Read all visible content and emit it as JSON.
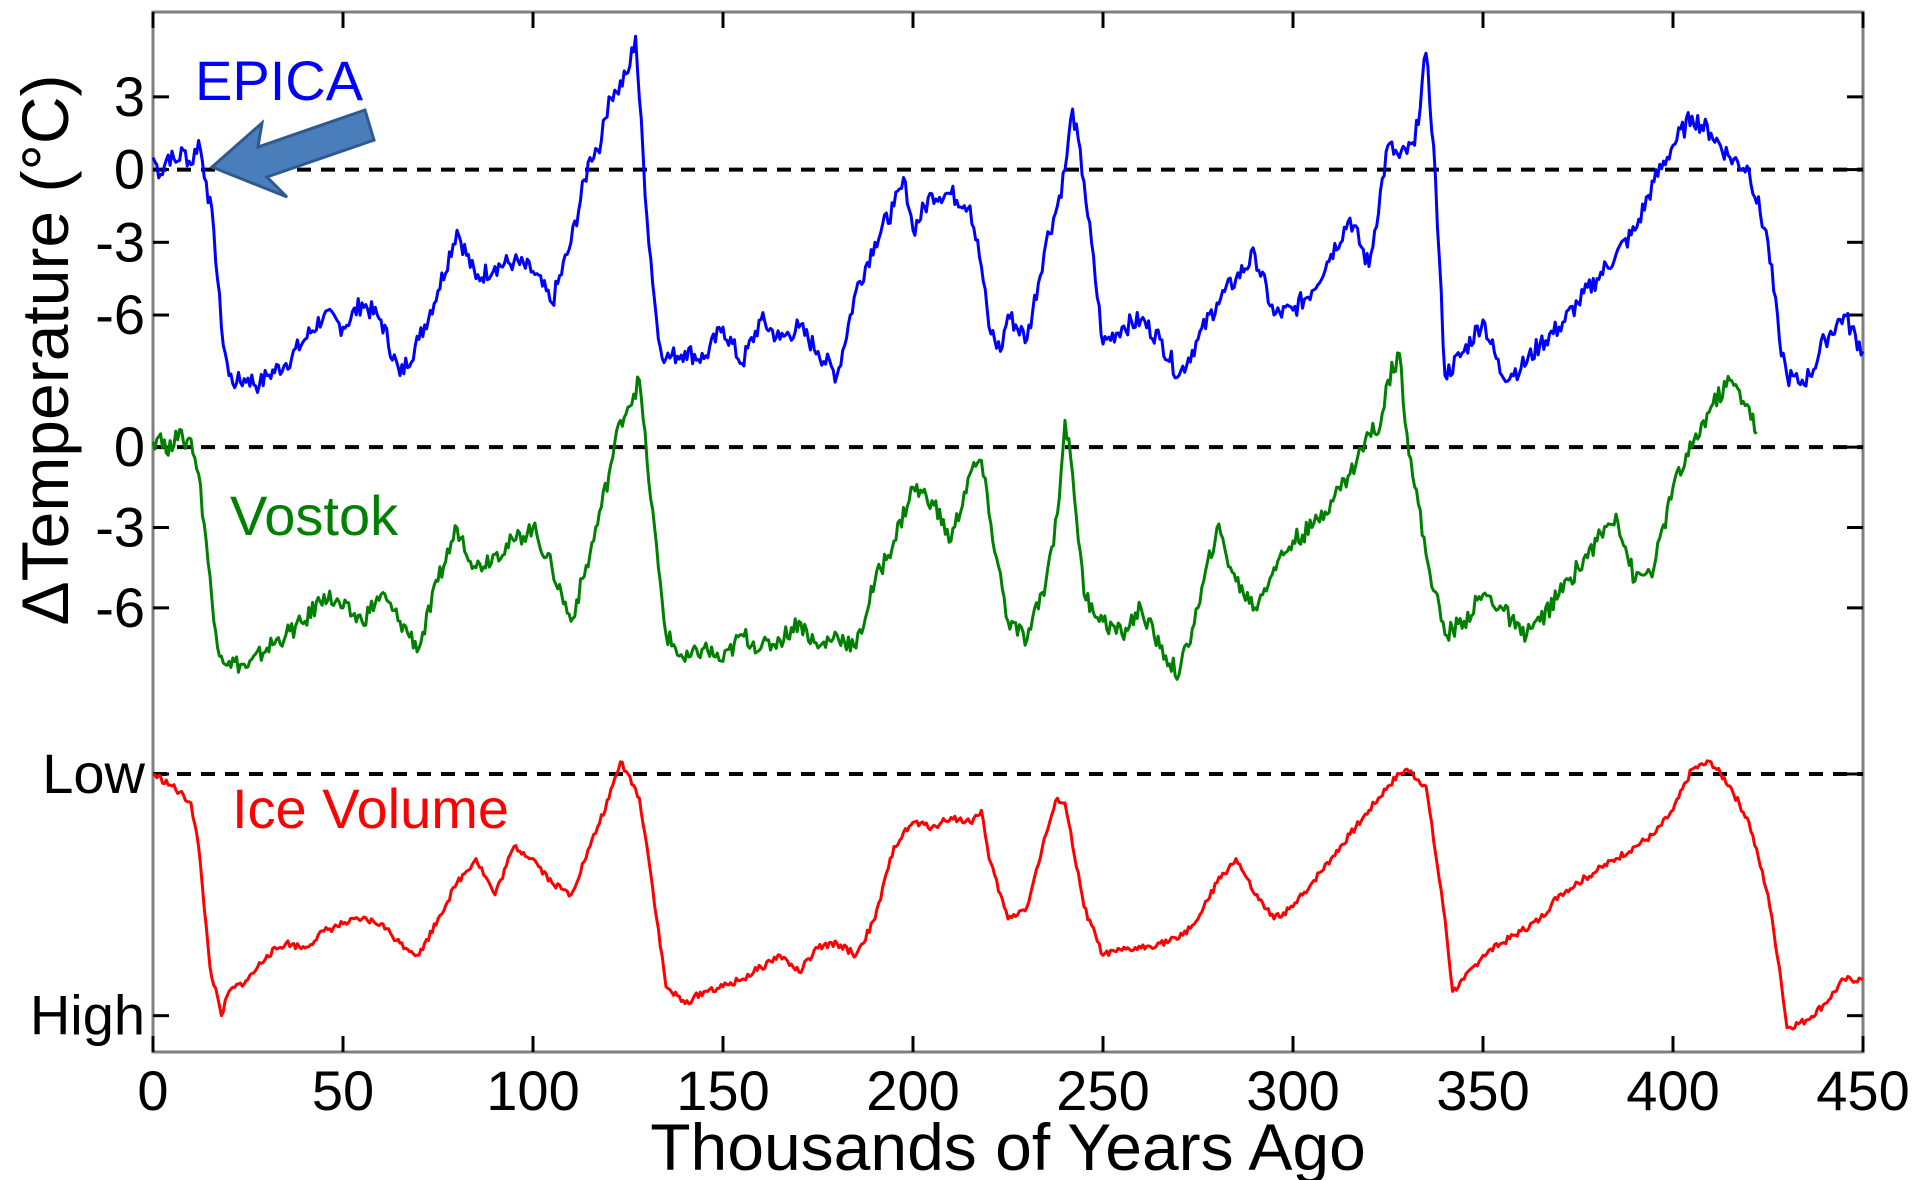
{
  "chart_data": {
    "type": "line",
    "xlabel": "Thousands of Years Ago",
    "ylabel": "ΔTemperature (°C)",
    "xlim": [
      0,
      450
    ],
    "x_ticks": [
      "0",
      "50",
      "100",
      "150",
      "200",
      "250",
      "300",
      "350",
      "400",
      "450"
    ],
    "grid": false,
    "panels": [
      {
        "name": "EPICA",
        "unit": "°C",
        "ylim": [
          -10,
          6.5
        ],
        "y_ticks": [
          3,
          0,
          -3,
          -6
        ],
        "y_tick_labels": [
          "3",
          "0",
          "-3",
          "-6"
        ],
        "color": "#0000ff",
        "baseline": 0,
        "x": [
          0,
          2,
          4,
          6,
          8,
          10,
          12,
          14,
          16,
          18,
          20,
          22,
          25,
          28,
          30,
          35,
          40,
          45,
          50,
          55,
          60,
          65,
          70,
          75,
          80,
          85,
          90,
          95,
          100,
          105,
          110,
          115,
          118,
          120,
          122,
          125,
          127,
          130,
          133,
          135,
          140,
          145,
          150,
          155,
          160,
          165,
          170,
          175,
          180,
          185,
          190,
          195,
          198,
          200,
          205,
          210,
          215,
          218,
          220,
          223,
          225,
          230,
          235,
          238,
          240,
          242,
          245,
          250,
          255,
          260,
          265,
          270,
          275,
          280,
          285,
          290,
          295,
          300,
          305,
          310,
          315,
          320,
          325,
          328,
          332,
          335,
          337,
          340,
          345,
          350,
          355,
          360,
          365,
          370,
          375,
          380,
          385,
          390,
          395,
          400,
          405,
          410,
          415,
          420,
          425,
          428,
          430,
          433,
          436,
          440,
          445,
          450
        ],
        "y": [
          0.5,
          -0.2,
          0.6,
          0.3,
          0.8,
          0.2,
          1.2,
          -0.5,
          -2.5,
          -6.5,
          -8.5,
          -8.8,
          -8.6,
          -8.9,
          -8.5,
          -8.0,
          -7.0,
          -6.0,
          -6.5,
          -5.5,
          -6.2,
          -8.5,
          -7.0,
          -5.0,
          -2.5,
          -4.5,
          -4.0,
          -3.8,
          -4.2,
          -5.5,
          -3.0,
          0.5,
          1.2,
          3.0,
          3.2,
          4.0,
          5.5,
          -2.0,
          -7.0,
          -7.8,
          -7.5,
          -7.8,
          -6.5,
          -8.0,
          -6.2,
          -7.0,
          -6.5,
          -7.5,
          -8.5,
          -5.0,
          -3.0,
          -1.5,
          -0.5,
          -2.5,
          -1.0,
          -1.0,
          -1.5,
          -4.0,
          -6.5,
          -7.5,
          -6.0,
          -7.0,
          -3.0,
          -1.5,
          0.0,
          2.5,
          -0.5,
          -7.2,
          -6.5,
          -6.2,
          -7.0,
          -8.5,
          -7.0,
          -5.5,
          -4.5,
          -3.5,
          -6.0,
          -5.8,
          -5.0,
          -3.5,
          -2.0,
          -4.0,
          1.0,
          0.5,
          1.0,
          4.8,
          1.0,
          -8.5,
          -7.5,
          -6.2,
          -8.5,
          -8.2,
          -7.2,
          -6.5,
          -5.5,
          -4.5,
          -3.5,
          -2.5,
          -0.5,
          1.0,
          2.2,
          1.5,
          0.5,
          0.0,
          -3.0,
          -7.0,
          -8.5,
          -8.8,
          -8.5,
          -7.0,
          -6.0,
          -7.5
        ]
      },
      {
        "name": "Vostok",
        "unit": "°C",
        "ylim": [
          -10,
          4
        ],
        "y_ticks": [
          0,
          -3,
          -6
        ],
        "y_tick_labels": [
          "0",
          "-3",
          "-6"
        ],
        "color": "#008000",
        "baseline": 0,
        "x": [
          0,
          2,
          4,
          6,
          8,
          10,
          12,
          14,
          16,
          18,
          20,
          25,
          30,
          35,
          40,
          45,
          50,
          55,
          60,
          65,
          70,
          75,
          80,
          85,
          90,
          95,
          100,
          105,
          110,
          115,
          120,
          123,
          125,
          128,
          130,
          133,
          135,
          140,
          145,
          150,
          155,
          160,
          165,
          170,
          175,
          180,
          185,
          190,
          195,
          200,
          205,
          210,
          215,
          218,
          220,
          225,
          230,
          235,
          238,
          240,
          242,
          245,
          250,
          255,
          260,
          265,
          270,
          275,
          280,
          285,
          290,
          295,
          300,
          305,
          310,
          315,
          320,
          323,
          325,
          328,
          330,
          335,
          340,
          345,
          350,
          355,
          360,
          365,
          370,
          375,
          380,
          385,
          390,
          395,
          400,
          405,
          410,
          415,
          420,
          422
        ],
        "y": [
          0.2,
          0.5,
          -0.3,
          0.6,
          0.2,
          0.3,
          -1.0,
          -3.5,
          -6.5,
          -7.8,
          -8.0,
          -8.2,
          -7.5,
          -7.0,
          -6.5,
          -5.5,
          -6.0,
          -6.5,
          -5.5,
          -6.5,
          -7.5,
          -5.0,
          -3.0,
          -4.5,
          -4.0,
          -3.5,
          -3.0,
          -4.5,
          -6.5,
          -4.0,
          -1.0,
          1.0,
          1.5,
          2.5,
          -0.5,
          -4.5,
          -7.0,
          -8.0,
          -7.5,
          -8.0,
          -7.0,
          -7.5,
          -7.2,
          -6.5,
          -7.5,
          -7.0,
          -7.5,
          -5.0,
          -3.5,
          -1.5,
          -2.0,
          -3.5,
          -1.0,
          -0.5,
          -2.5,
          -6.5,
          -7.2,
          -5.0,
          -2.5,
          1.0,
          -1.0,
          -5.5,
          -6.5,
          -7.0,
          -6.0,
          -7.5,
          -8.5,
          -6.0,
          -3.0,
          -5.0,
          -6.0,
          -4.5,
          -3.5,
          -3.0,
          -2.0,
          -1.0,
          0.5,
          0.8,
          2.5,
          3.5,
          0.5,
          -4.0,
          -7.0,
          -6.5,
          -5.5,
          -6.0,
          -7.0,
          -6.5,
          -5.5,
          -4.5,
          -3.5,
          -2.5,
          -5.0,
          -4.5,
          -1.5,
          0.0,
          1.5,
          2.5,
          1.5,
          0.5
        ]
      },
      {
        "name": "Ice Volume",
        "ylim": [
          -1.08,
          0.12
        ],
        "y_ticks": [
          0,
          -1
        ],
        "y_tick_labels": [
          "Low",
          "High"
        ],
        "color": "#ff0000",
        "baseline": 0,
        "x": [
          0,
          5,
          10,
          12,
          15,
          18,
          20,
          25,
          30,
          35,
          40,
          45,
          50,
          55,
          60,
          65,
          70,
          75,
          80,
          85,
          90,
          95,
          100,
          105,
          110,
          115,
          120,
          123,
          125,
          128,
          130,
          135,
          140,
          145,
          150,
          155,
          160,
          165,
          170,
          175,
          180,
          185,
          190,
          195,
          200,
          205,
          210,
          215,
          218,
          220,
          225,
          230,
          235,
          238,
          240,
          245,
          250,
          255,
          260,
          265,
          270,
          275,
          280,
          285,
          290,
          295,
          300,
          305,
          310,
          315,
          320,
          325,
          328,
          330,
          335,
          340,
          342,
          345,
          350,
          355,
          360,
          365,
          370,
          375,
          380,
          385,
          390,
          395,
          400,
          405,
          410,
          415,
          420,
          425,
          428,
          430,
          435,
          440,
          445,
          450
        ],
        "y": [
          0.0,
          -0.05,
          -0.12,
          -0.3,
          -0.8,
          -1.0,
          -0.9,
          -0.85,
          -0.75,
          -0.7,
          -0.72,
          -0.65,
          -0.62,
          -0.6,
          -0.62,
          -0.7,
          -0.75,
          -0.6,
          -0.45,
          -0.35,
          -0.5,
          -0.3,
          -0.35,
          -0.45,
          -0.5,
          -0.3,
          -0.1,
          0.05,
          0.0,
          -0.1,
          -0.3,
          -0.88,
          -0.95,
          -0.9,
          -0.88,
          -0.85,
          -0.8,
          -0.75,
          -0.82,
          -0.72,
          -0.7,
          -0.75,
          -0.6,
          -0.3,
          -0.2,
          -0.22,
          -0.18,
          -0.2,
          -0.15,
          -0.35,
          -0.6,
          -0.55,
          -0.25,
          -0.1,
          -0.12,
          -0.55,
          -0.75,
          -0.73,
          -0.72,
          -0.7,
          -0.68,
          -0.6,
          -0.45,
          -0.35,
          -0.5,
          -0.6,
          -0.55,
          -0.45,
          -0.35,
          -0.25,
          -0.15,
          -0.05,
          0.0,
          0.02,
          -0.05,
          -0.6,
          -0.9,
          -0.85,
          -0.75,
          -0.7,
          -0.65,
          -0.6,
          -0.5,
          -0.45,
          -0.4,
          -0.35,
          -0.3,
          -0.25,
          -0.15,
          0.02,
          0.05,
          -0.05,
          -0.2,
          -0.5,
          -0.8,
          -1.05,
          -1.02,
          -0.95,
          -0.85,
          -0.85
        ]
      }
    ]
  }
}
